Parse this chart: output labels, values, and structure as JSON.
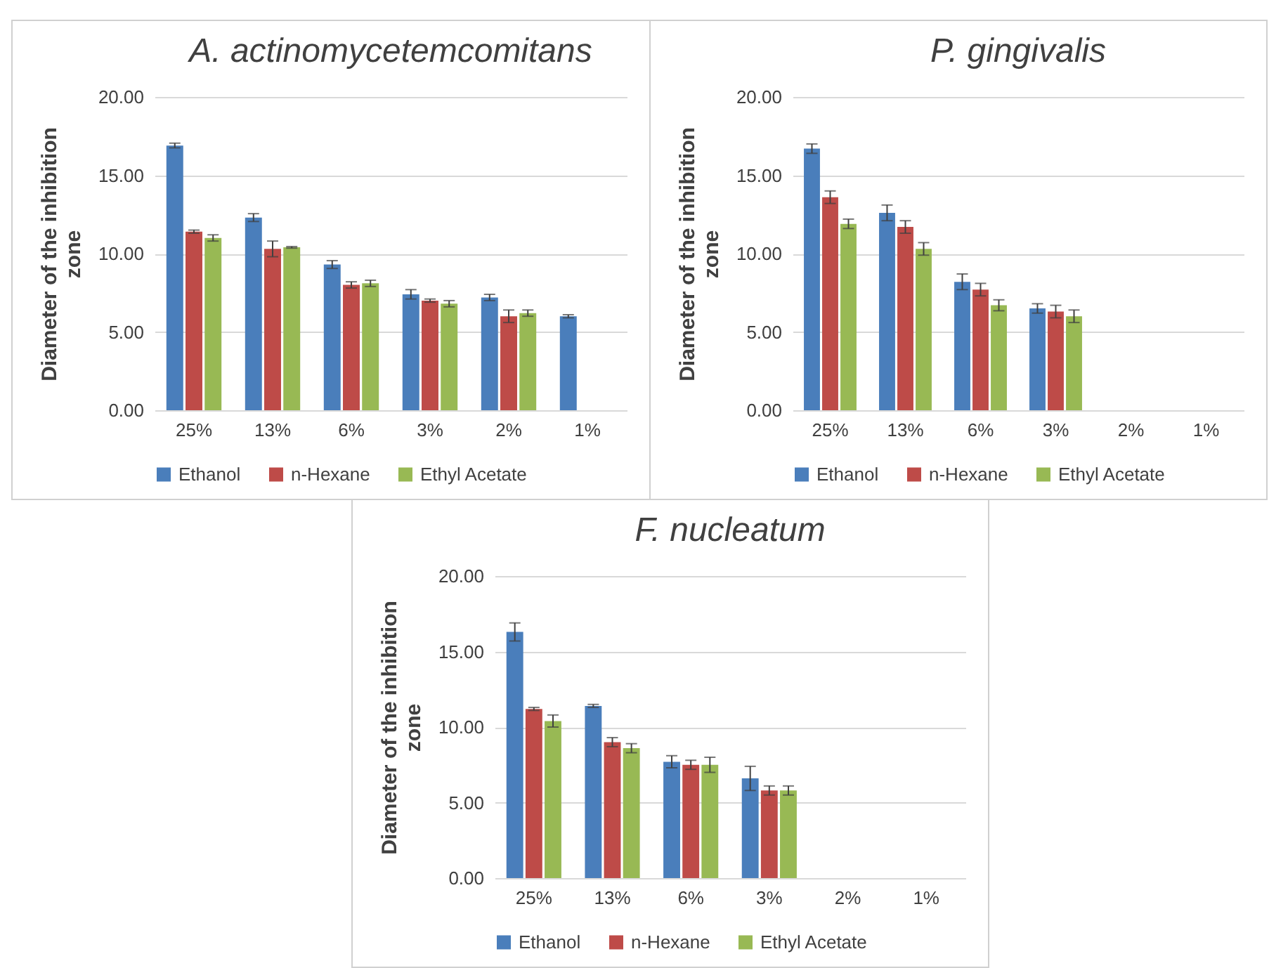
{
  "chart_data": [
    {
      "type": "bar",
      "title": "A. actinomycetemcomitans",
      "ylabel": "Diameter of the inhibition zone",
      "categories": [
        "25%",
        "13%",
        "6%",
        "3%",
        "2%",
        "1%"
      ],
      "ylim": [
        0,
        20
      ],
      "yticks": [
        {
          "value": 0,
          "label": "0.00"
        },
        {
          "value": 5,
          "label": "5.00"
        },
        {
          "value": 10,
          "label": "10.00"
        },
        {
          "value": 15,
          "label": "15.00"
        },
        {
          "value": 20,
          "label": "20.00"
        }
      ],
      "grid": "y",
      "legend": "bottom",
      "series": [
        {
          "name": "Ethanol",
          "color": "#4a7ebb",
          "values": [
            16.9,
            12.3,
            9.3,
            7.4,
            7.2,
            6.0
          ],
          "errors": [
            0.15,
            0.25,
            0.25,
            0.3,
            0.2,
            0.1
          ]
        },
        {
          "name": "n-Hexane",
          "color": "#be4b48",
          "values": [
            11.4,
            10.3,
            8.0,
            7.0,
            6.0,
            null
          ],
          "errors": [
            0.1,
            0.5,
            0.2,
            0.1,
            0.4,
            null
          ]
        },
        {
          "name": "Ethyl Acetate",
          "color": "#98b954",
          "values": [
            11.0,
            10.4,
            8.1,
            6.8,
            6.2,
            null
          ],
          "errors": [
            0.2,
            0.05,
            0.2,
            0.2,
            0.2,
            null
          ]
        }
      ]
    },
    {
      "type": "bar",
      "title": "P. gingivalis",
      "ylabel": "Diameter of the inhibition zone",
      "categories": [
        "25%",
        "13%",
        "6%",
        "3%",
        "2%",
        "1%"
      ],
      "ylim": [
        0,
        20
      ],
      "yticks": [
        {
          "value": 0,
          "label": "0.00"
        },
        {
          "value": 5,
          "label": "5.00"
        },
        {
          "value": 10,
          "label": "10.00"
        },
        {
          "value": 15,
          "label": "15.00"
        },
        {
          "value": 20,
          "label": "20.00"
        }
      ],
      "grid": "y",
      "legend": "bottom",
      "series": [
        {
          "name": "Ethanol",
          "color": "#4a7ebb",
          "values": [
            16.7,
            12.6,
            8.2,
            6.5,
            null,
            null
          ],
          "errors": [
            0.3,
            0.5,
            0.5,
            0.3,
            null,
            null
          ]
        },
        {
          "name": "n-Hexane",
          "color": "#be4b48",
          "values": [
            13.6,
            11.7,
            7.7,
            6.3,
            null,
            null
          ],
          "errors": [
            0.4,
            0.4,
            0.4,
            0.4,
            null,
            null
          ]
        },
        {
          "name": "Ethyl Acetate",
          "color": "#98b954",
          "values": [
            11.9,
            10.3,
            6.7,
            6.0,
            null,
            null
          ],
          "errors": [
            0.3,
            0.4,
            0.35,
            0.4,
            null,
            null
          ]
        }
      ]
    },
    {
      "type": "bar",
      "title": "F. nucleatum",
      "ylabel": "Diameter of the inhibition zone",
      "categories": [
        "25%",
        "13%",
        "6%",
        "3%",
        "2%",
        "1%"
      ],
      "ylim": [
        0,
        20
      ],
      "yticks": [
        {
          "value": 0,
          "label": "0.00"
        },
        {
          "value": 5,
          "label": "5.00"
        },
        {
          "value": 10,
          "label": "10.00"
        },
        {
          "value": 15,
          "label": "15.00"
        },
        {
          "value": 20,
          "label": "20.00"
        }
      ],
      "grid": "y",
      "legend": "bottom",
      "series": [
        {
          "name": "Ethanol",
          "color": "#4a7ebb",
          "values": [
            16.3,
            11.4,
            7.7,
            6.6,
            null,
            null
          ],
          "errors": [
            0.6,
            0.1,
            0.4,
            0.8,
            null,
            null
          ]
        },
        {
          "name": "n-Hexane",
          "color": "#be4b48",
          "values": [
            11.2,
            9.0,
            7.5,
            5.8,
            null,
            null
          ],
          "errors": [
            0.1,
            0.3,
            0.3,
            0.3,
            null,
            null
          ]
        },
        {
          "name": "Ethyl Acetate",
          "color": "#98b954",
          "values": [
            10.4,
            8.6,
            7.5,
            5.8,
            null,
            null
          ],
          "errors": [
            0.4,
            0.3,
            0.5,
            0.3,
            null,
            null
          ]
        }
      ]
    }
  ]
}
